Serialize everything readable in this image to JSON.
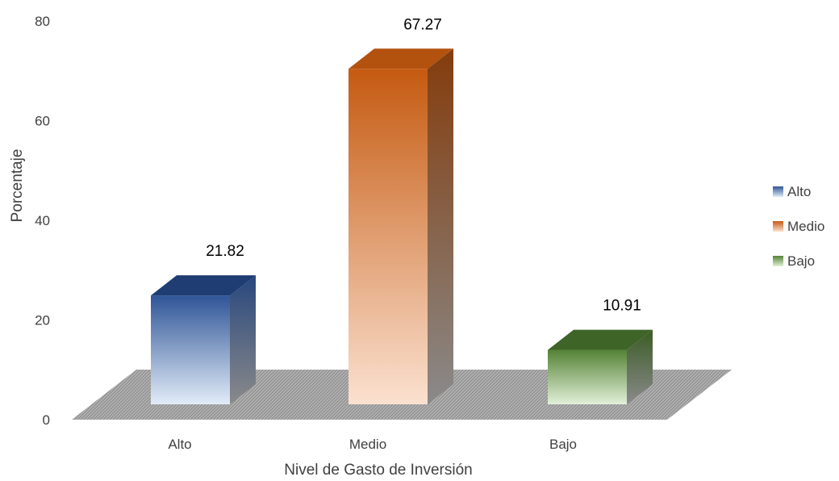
{
  "chart_data": {
    "type": "bar",
    "style": "3d-column",
    "categories": [
      "Alto",
      "Medio",
      "Bajo"
    ],
    "values": [
      21.82,
      67.27,
      10.91
    ],
    "data_labels": [
      "21.82",
      "67.27",
      "10.91"
    ],
    "title": "",
    "xlabel": "Nivel de Gasto de Inversión",
    "ylabel": "Porcentaje",
    "ylim": [
      0,
      80
    ],
    "yticks": [
      0,
      20,
      40,
      60,
      80
    ],
    "grid": false,
    "legend": {
      "position": "right",
      "entries": [
        "Alto",
        "Medio",
        "Bajo"
      ]
    },
    "colors": {
      "Alto": {
        "front_top": "#2f5597",
        "front_bottom": "#e2ecf8",
        "side": "#28477d",
        "top": "#1f3d73"
      },
      "Medio": {
        "front_top": "#c55a11",
        "front_bottom": "#fbe1d0",
        "side": "#843c0c",
        "top": "#b3520f"
      },
      "Bajo": {
        "front_top": "#548235",
        "front_bottom": "#e2f0d9",
        "side": "#3b5c25",
        "top": "#3f6427"
      }
    },
    "floor_color": "#a6a6a6"
  }
}
